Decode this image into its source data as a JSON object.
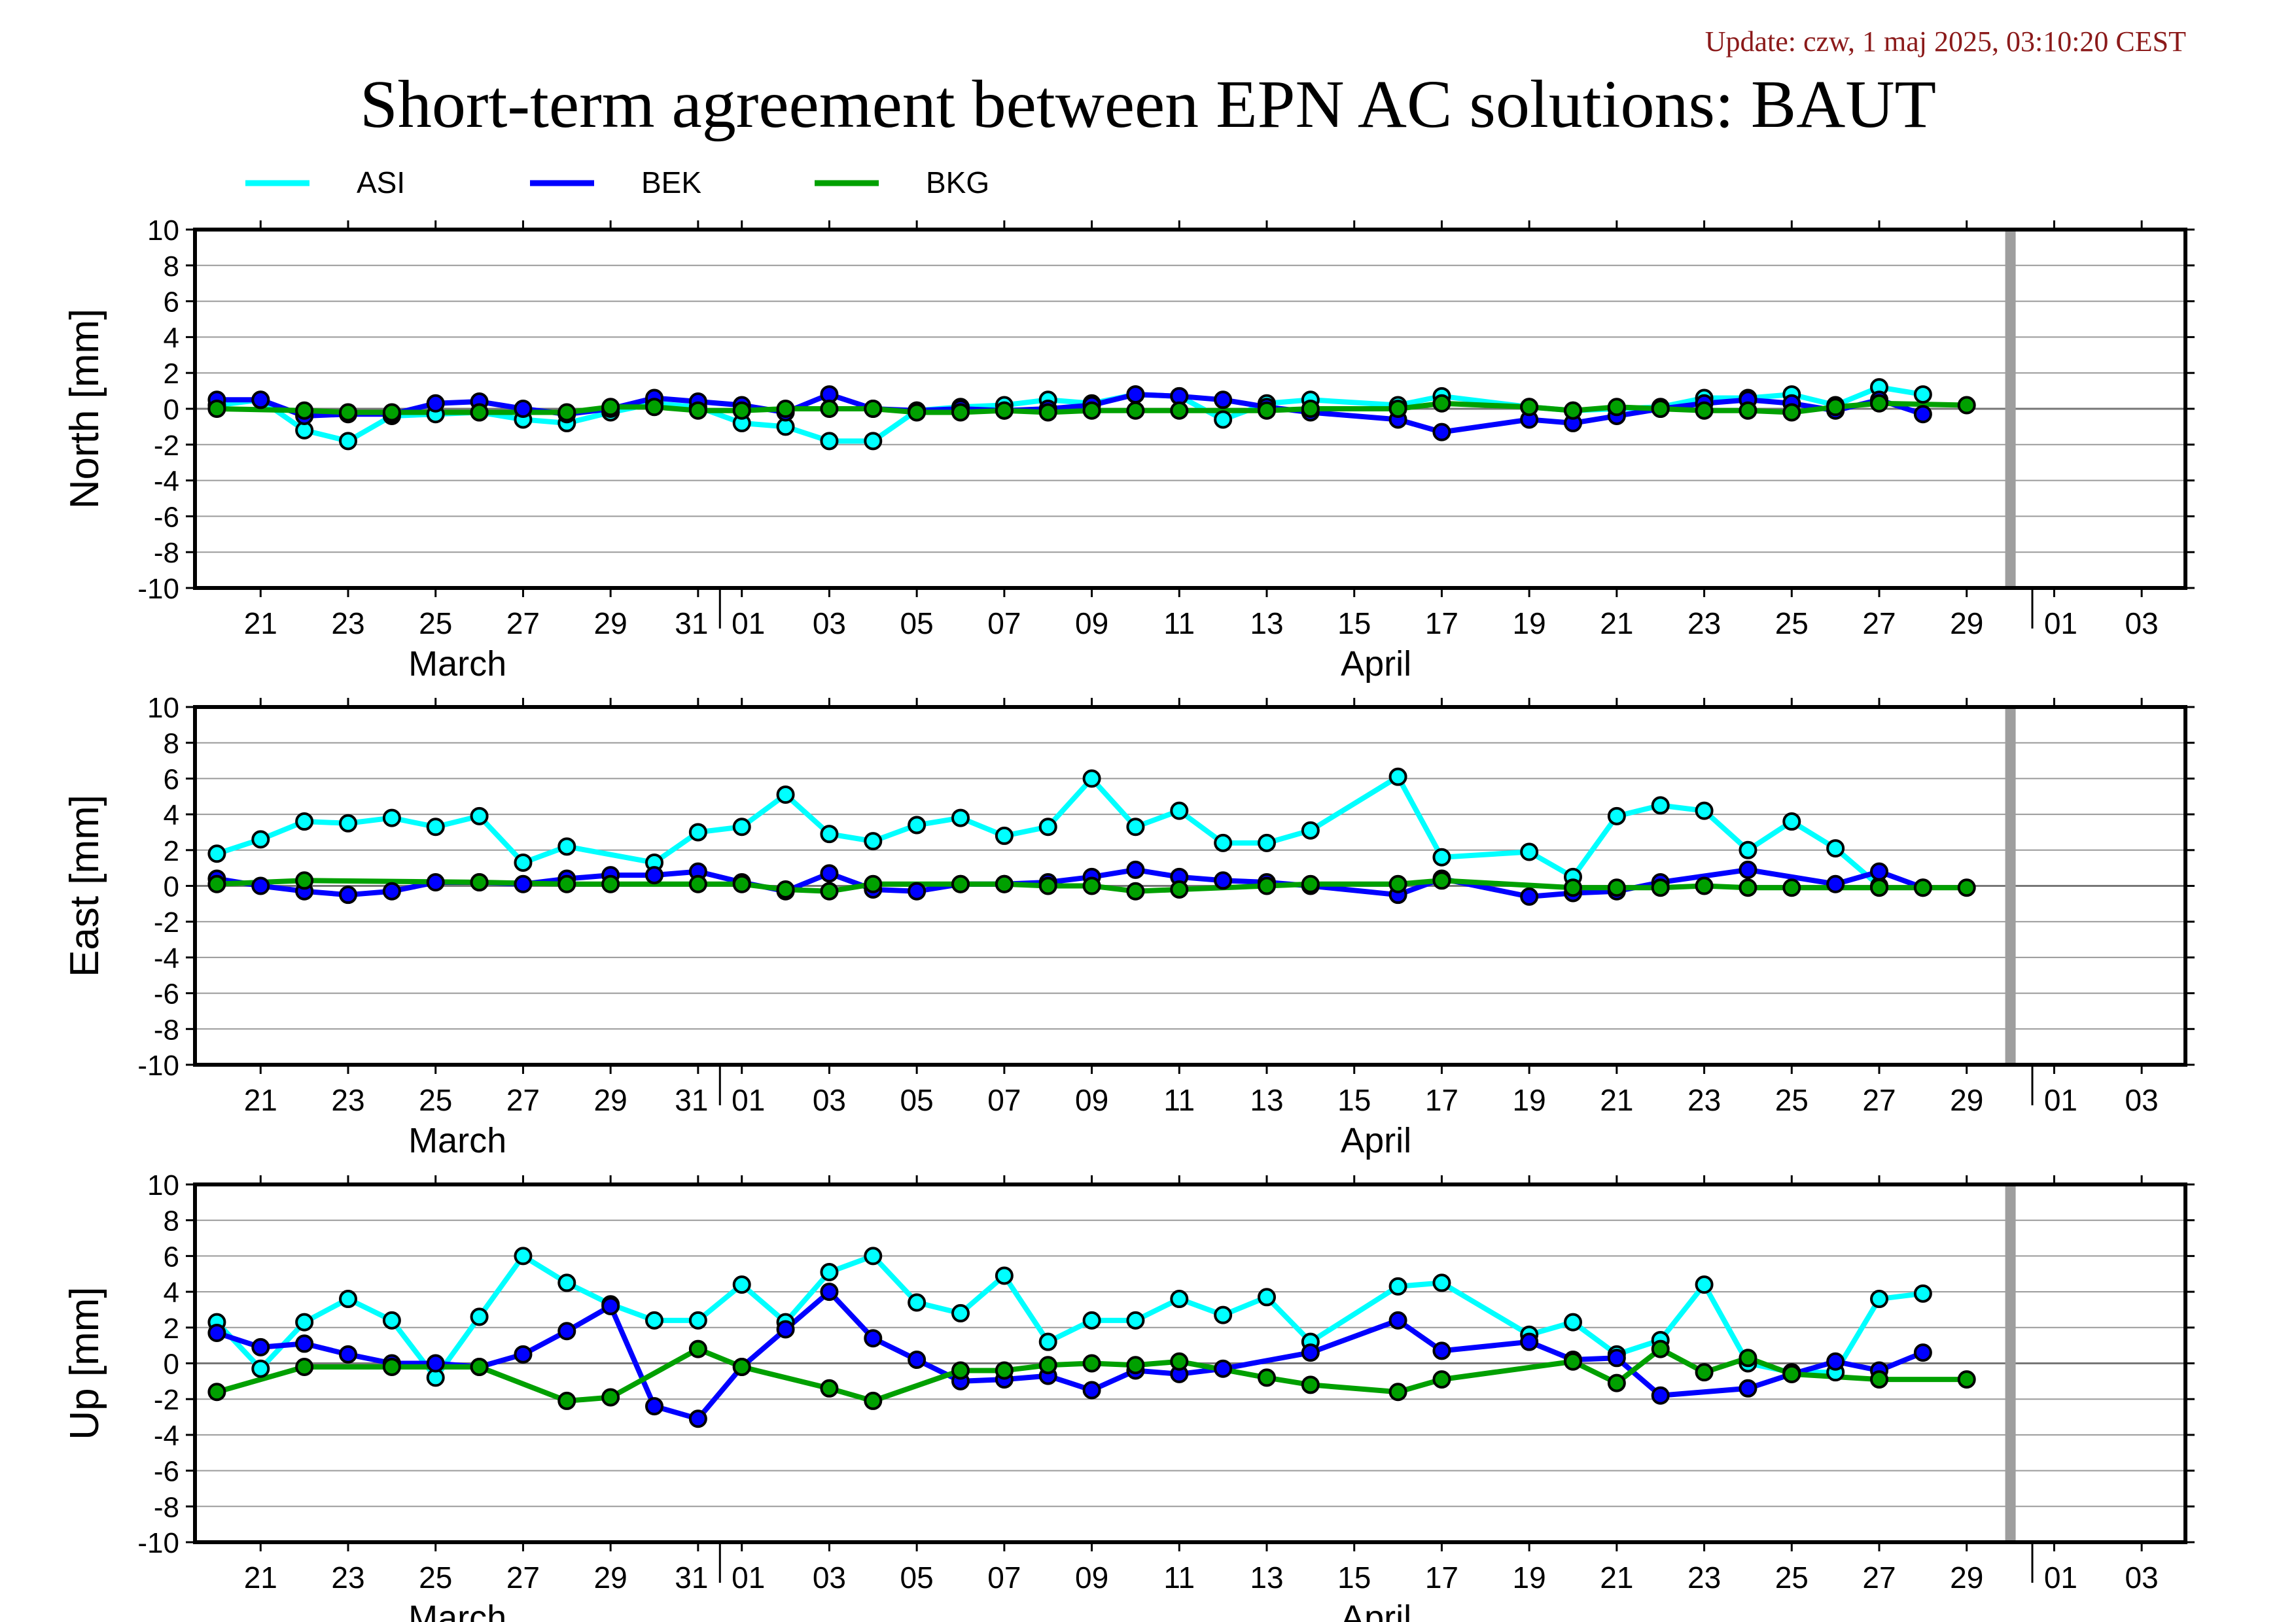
{
  "update_text": "Update: czw, 1 maj 2025, 03:10:20 CEST",
  "title": "Short-term agreement between EPN AC solutions: BAUT",
  "legend": [
    {
      "name": "ASI",
      "color": "#00ffff"
    },
    {
      "name": "BEK",
      "color": "#0000ff"
    },
    {
      "name": "BKG",
      "color": "#00a000"
    }
  ],
  "x_ticks": [
    "21",
    "23",
    "25",
    "27",
    "29",
    "31",
    "01",
    "03",
    "05",
    "07",
    "09",
    "11",
    "13",
    "15",
    "17",
    "19",
    "21",
    "23",
    "25",
    "27",
    "29",
    "01",
    "03"
  ],
  "month_labels": [
    "March",
    "April"
  ],
  "chart_data": [
    {
      "type": "line",
      "ylabel": "North [mm]",
      "ylim": [
        -10,
        10
      ],
      "yticks": [
        "10",
        "8",
        "6",
        "4",
        "2",
        "0",
        "-2",
        "-4",
        "-6",
        "-8",
        "-10"
      ],
      "x_range": [
        "2025-03-19.5",
        "2025-05-04"
      ],
      "grid": true,
      "marker_line": "2025-04-30",
      "series": [
        {
          "name": "ASI",
          "color": "#00ffff",
          "x": [
            "2025-03-20",
            "2025-03-21",
            "2025-03-22",
            "2025-03-23",
            "2025-03-24",
            "2025-03-25",
            "2025-03-26",
            "2025-03-27",
            "2025-03-28",
            "2025-03-29",
            "2025-03-30",
            "2025-03-31",
            "2025-04-01",
            "2025-04-02",
            "2025-04-03",
            "2025-04-04",
            "2025-04-05",
            "2025-04-06",
            "2025-04-07",
            "2025-04-08",
            "2025-04-09",
            "2025-04-10",
            "2025-04-11",
            "2025-04-12",
            "2025-04-13",
            "2025-04-14",
            "2025-04-16",
            "2025-04-17",
            "2025-04-19",
            "2025-04-20",
            "2025-04-21",
            "2025-04-22",
            "2025-04-23",
            "2025-04-24",
            "2025-04-25",
            "2025-04-26",
            "2025-04-27",
            "2025-04-28"
          ],
          "y": [
            0.2,
            0.5,
            -1.2,
            -1.8,
            -0.4,
            -0.3,
            -0.2,
            -0.6,
            -0.8,
            -0.2,
            0.3,
            0.1,
            -0.8,
            -1.0,
            -1.8,
            -1.8,
            -0.1,
            0.1,
            0.2,
            0.5,
            0.3,
            0.8,
            0.7,
            -0.6,
            0.3,
            0.5,
            0.2,
            0.7,
            0.1,
            -0.1,
            0.0,
            0.1,
            0.6,
            0.6,
            0.8,
            0.2,
            1.2,
            0.8
          ]
        },
        {
          "name": "BEK",
          "color": "#0000ff",
          "x": [
            "2025-03-20",
            "2025-03-21",
            "2025-03-22",
            "2025-03-23",
            "2025-03-24",
            "2025-03-25",
            "2025-03-26",
            "2025-03-27",
            "2025-03-28",
            "2025-03-29",
            "2025-03-30",
            "2025-03-31",
            "2025-04-01",
            "2025-04-02",
            "2025-04-03",
            "2025-04-04",
            "2025-04-05",
            "2025-04-06",
            "2025-04-07",
            "2025-04-08",
            "2025-04-09",
            "2025-04-10",
            "2025-04-11",
            "2025-04-12",
            "2025-04-13",
            "2025-04-14",
            "2025-04-16",
            "2025-04-17",
            "2025-04-19",
            "2025-04-20",
            "2025-04-21",
            "2025-04-22",
            "2025-04-23",
            "2025-04-24",
            "2025-04-25",
            "2025-04-26",
            "2025-04-27",
            "2025-04-28"
          ],
          "y": [
            0.5,
            0.5,
            -0.4,
            -0.3,
            -0.3,
            0.3,
            0.4,
            0.0,
            -0.3,
            0.0,
            0.6,
            0.4,
            0.2,
            -0.2,
            0.8,
            0.0,
            -0.1,
            0.0,
            -0.1,
            0.0,
            0.2,
            0.8,
            0.7,
            0.5,
            0.1,
            -0.2,
            -0.6,
            -1.3,
            -0.6,
            -0.8,
            -0.4,
            0.0,
            0.3,
            0.5,
            0.3,
            -0.1,
            0.5,
            -0.3
          ]
        },
        {
          "name": "BKG",
          "color": "#00a000",
          "x": [
            "2025-03-20",
            "2025-03-22",
            "2025-03-23",
            "2025-03-24",
            "2025-03-26",
            "2025-03-28",
            "2025-03-29",
            "2025-03-30",
            "2025-03-31",
            "2025-04-01",
            "2025-04-02",
            "2025-04-03",
            "2025-04-04",
            "2025-04-05",
            "2025-04-06",
            "2025-04-07",
            "2025-04-08",
            "2025-04-09",
            "2025-04-10",
            "2025-04-11",
            "2025-04-13",
            "2025-04-14",
            "2025-04-16",
            "2025-04-17",
            "2025-04-19",
            "2025-04-20",
            "2025-04-21",
            "2025-04-22",
            "2025-04-23",
            "2025-04-24",
            "2025-04-25",
            "2025-04-26",
            "2025-04-27",
            "2025-04-29"
          ],
          "y": [
            0.0,
            -0.1,
            -0.2,
            -0.2,
            -0.2,
            -0.2,
            0.1,
            0.1,
            -0.1,
            -0.1,
            0.0,
            0.0,
            0.0,
            -0.2,
            -0.2,
            -0.1,
            -0.2,
            -0.1,
            -0.1,
            -0.1,
            -0.1,
            0.0,
            0.0,
            0.3,
            0.1,
            -0.1,
            0.1,
            0.0,
            -0.1,
            -0.1,
            -0.2,
            0.1,
            0.3,
            0.2
          ]
        }
      ]
    },
    {
      "type": "line",
      "ylabel": "East [mm]",
      "ylim": [
        -10,
        10
      ],
      "yticks": [
        "10",
        "8",
        "6",
        "4",
        "2",
        "0",
        "-2",
        "-4",
        "-6",
        "-8",
        "-10"
      ],
      "x_range": [
        "2025-03-19.5",
        "2025-05-04"
      ],
      "grid": true,
      "marker_line": "2025-04-30",
      "series": [
        {
          "name": "ASI",
          "color": "#00ffff",
          "x": [
            "2025-03-20",
            "2025-03-21",
            "2025-03-22",
            "2025-03-23",
            "2025-03-24",
            "2025-03-25",
            "2025-03-26",
            "2025-03-27",
            "2025-03-28",
            "2025-03-30",
            "2025-03-31",
            "2025-04-01",
            "2025-04-02",
            "2025-04-03",
            "2025-04-04",
            "2025-04-05",
            "2025-04-06",
            "2025-04-07",
            "2025-04-08",
            "2025-04-09",
            "2025-04-10",
            "2025-04-11",
            "2025-04-12",
            "2025-04-13",
            "2025-04-14",
            "2025-04-16",
            "2025-04-17",
            "2025-04-19",
            "2025-04-20",
            "2025-04-21",
            "2025-04-22",
            "2025-04-23",
            "2025-04-24",
            "2025-04-25",
            "2025-04-26",
            "2025-04-27"
          ],
          "y": [
            1.8,
            2.6,
            3.6,
            3.5,
            3.8,
            3.3,
            3.9,
            1.3,
            2.2,
            1.3,
            3.0,
            3.3,
            5.1,
            2.9,
            2.5,
            3.4,
            3.8,
            2.8,
            3.3,
            6.0,
            3.3,
            4.2,
            2.4,
            2.4,
            3.1,
            6.1,
            1.6,
            1.9,
            0.5,
            3.9,
            4.5,
            4.2,
            2.0,
            3.6,
            2.1,
            0.0
          ]
        },
        {
          "name": "BEK",
          "color": "#0000ff",
          "x": [
            "2025-03-20",
            "2025-03-21",
            "2025-03-22",
            "2025-03-23",
            "2025-03-24",
            "2025-03-25",
            "2025-03-26",
            "2025-03-27",
            "2025-03-28",
            "2025-03-29",
            "2025-03-30",
            "2025-03-31",
            "2025-04-01",
            "2025-04-02",
            "2025-04-03",
            "2025-04-04",
            "2025-04-05",
            "2025-04-06",
            "2025-04-07",
            "2025-04-08",
            "2025-04-09",
            "2025-04-10",
            "2025-04-11",
            "2025-04-12",
            "2025-04-13",
            "2025-04-14",
            "2025-04-16",
            "2025-04-17",
            "2025-04-19",
            "2025-04-20",
            "2025-04-21",
            "2025-04-22",
            "2025-04-24",
            "2025-04-26",
            "2025-04-27",
            "2025-04-28"
          ],
          "y": [
            0.4,
            0.0,
            -0.3,
            -0.5,
            -0.3,
            0.2,
            0.2,
            0.1,
            0.4,
            0.6,
            0.6,
            0.8,
            0.2,
            -0.3,
            0.7,
            -0.2,
            -0.3,
            0.1,
            0.1,
            0.2,
            0.5,
            0.9,
            0.5,
            0.3,
            0.2,
            0.0,
            -0.5,
            0.4,
            -0.6,
            -0.4,
            -0.3,
            0.2,
            0.9,
            0.1,
            0.8,
            -0.1
          ]
        },
        {
          "name": "BKG",
          "color": "#00a000",
          "x": [
            "2025-03-20",
            "2025-03-22",
            "2025-03-26",
            "2025-03-28",
            "2025-03-29",
            "2025-03-31",
            "2025-04-01",
            "2025-04-02",
            "2025-04-03",
            "2025-04-04",
            "2025-04-06",
            "2025-04-07",
            "2025-04-08",
            "2025-04-09",
            "2025-04-10",
            "2025-04-11",
            "2025-04-13",
            "2025-04-14",
            "2025-04-16",
            "2025-04-17",
            "2025-04-20",
            "2025-04-21",
            "2025-04-22",
            "2025-04-23",
            "2025-04-24",
            "2025-04-25",
            "2025-04-27",
            "2025-04-28",
            "2025-04-29"
          ],
          "y": [
            0.1,
            0.3,
            0.2,
            0.1,
            0.1,
            0.1,
            0.1,
            -0.2,
            -0.3,
            0.1,
            0.1,
            0.1,
            0.0,
            0.0,
            -0.3,
            -0.2,
            0.0,
            0.1,
            0.1,
            0.3,
            -0.1,
            -0.1,
            -0.1,
            0.0,
            -0.1,
            -0.1,
            -0.1,
            -0.1,
            -0.1
          ]
        }
      ]
    },
    {
      "type": "line",
      "ylabel": "Up [mm]",
      "ylim": [
        -10,
        10
      ],
      "yticks": [
        "10",
        "8",
        "6",
        "4",
        "2",
        "0",
        "-2",
        "-4",
        "-6",
        "-8",
        "-10"
      ],
      "x_range": [
        "2025-03-19.5",
        "2025-05-04"
      ],
      "grid": true,
      "marker_line": "2025-04-30",
      "series": [
        {
          "name": "ASI",
          "color": "#00ffff",
          "x": [
            "2025-03-20",
            "2025-03-21",
            "2025-03-22",
            "2025-03-23",
            "2025-03-24",
            "2025-03-25",
            "2025-03-26",
            "2025-03-27",
            "2025-03-28",
            "2025-03-29",
            "2025-03-30",
            "2025-03-31",
            "2025-04-01",
            "2025-04-02",
            "2025-04-03",
            "2025-04-04",
            "2025-04-05",
            "2025-04-06",
            "2025-04-07",
            "2025-04-08",
            "2025-04-09",
            "2025-04-10",
            "2025-04-11",
            "2025-04-12",
            "2025-04-13",
            "2025-04-14",
            "2025-04-16",
            "2025-04-17",
            "2025-04-19",
            "2025-04-20",
            "2025-04-21",
            "2025-04-22",
            "2025-04-23",
            "2025-04-24",
            "2025-04-25",
            "2025-04-26",
            "2025-04-27",
            "2025-04-28"
          ],
          "y": [
            2.3,
            -0.3,
            2.3,
            3.6,
            2.4,
            -0.8,
            2.6,
            6.0,
            4.5,
            3.3,
            2.4,
            2.4,
            4.4,
            2.3,
            5.1,
            6.0,
            3.4,
            2.8,
            4.9,
            1.2,
            2.4,
            2.4,
            3.6,
            2.7,
            3.7,
            1.2,
            4.3,
            4.5,
            1.6,
            2.3,
            0.5,
            1.3,
            4.4,
            0.0,
            -0.5,
            -0.5,
            3.6,
            3.9
          ]
        },
        {
          "name": "BEK",
          "color": "#0000ff",
          "x": [
            "2025-03-20",
            "2025-03-21",
            "2025-03-22",
            "2025-03-23",
            "2025-03-24",
            "2025-03-25",
            "2025-03-26",
            "2025-03-27",
            "2025-03-28",
            "2025-03-29",
            "2025-03-30",
            "2025-03-31",
            "2025-04-01",
            "2025-04-02",
            "2025-04-03",
            "2025-04-04",
            "2025-04-05",
            "2025-04-06",
            "2025-04-07",
            "2025-04-08",
            "2025-04-09",
            "2025-04-10",
            "2025-04-11",
            "2025-04-12",
            "2025-04-14",
            "2025-04-16",
            "2025-04-17",
            "2025-04-19",
            "2025-04-20",
            "2025-04-21",
            "2025-04-22",
            "2025-04-24",
            "2025-04-25",
            "2025-04-26",
            "2025-04-27",
            "2025-04-28"
          ],
          "y": [
            1.7,
            0.9,
            1.1,
            0.5,
            0.0,
            0.0,
            -0.2,
            0.5,
            1.8,
            3.2,
            -2.4,
            -3.1,
            -0.2,
            1.9,
            4.0,
            1.4,
            0.2,
            -1.0,
            -0.9,
            -0.7,
            -1.5,
            -0.4,
            -0.6,
            -0.3,
            0.6,
            2.4,
            0.7,
            1.2,
            0.2,
            0.3,
            -1.8,
            -1.4,
            -0.6,
            0.1,
            -0.4,
            0.6
          ]
        },
        {
          "name": "BKG",
          "color": "#00a000",
          "x": [
            "2025-03-20",
            "2025-03-22",
            "2025-03-24",
            "2025-03-26",
            "2025-03-28",
            "2025-03-29",
            "2025-03-31",
            "2025-04-01",
            "2025-04-03",
            "2025-04-04",
            "2025-04-06",
            "2025-04-07",
            "2025-04-08",
            "2025-04-09",
            "2025-04-10",
            "2025-04-11",
            "2025-04-13",
            "2025-04-14",
            "2025-04-16",
            "2025-04-17",
            "2025-04-20",
            "2025-04-21",
            "2025-04-22",
            "2025-04-23",
            "2025-04-24",
            "2025-04-25",
            "2025-04-27",
            "2025-04-29"
          ],
          "y": [
            -1.6,
            -0.2,
            -0.2,
            -0.2,
            -2.1,
            -1.9,
            0.8,
            -0.2,
            -1.4,
            -2.1,
            -0.4,
            -0.4,
            -0.1,
            0.0,
            -0.1,
            0.1,
            -0.8,
            -1.2,
            -1.6,
            -0.9,
            0.1,
            -1.1,
            0.8,
            -0.5,
            0.3,
            -0.6,
            -0.9,
            -0.9
          ]
        }
      ]
    }
  ]
}
